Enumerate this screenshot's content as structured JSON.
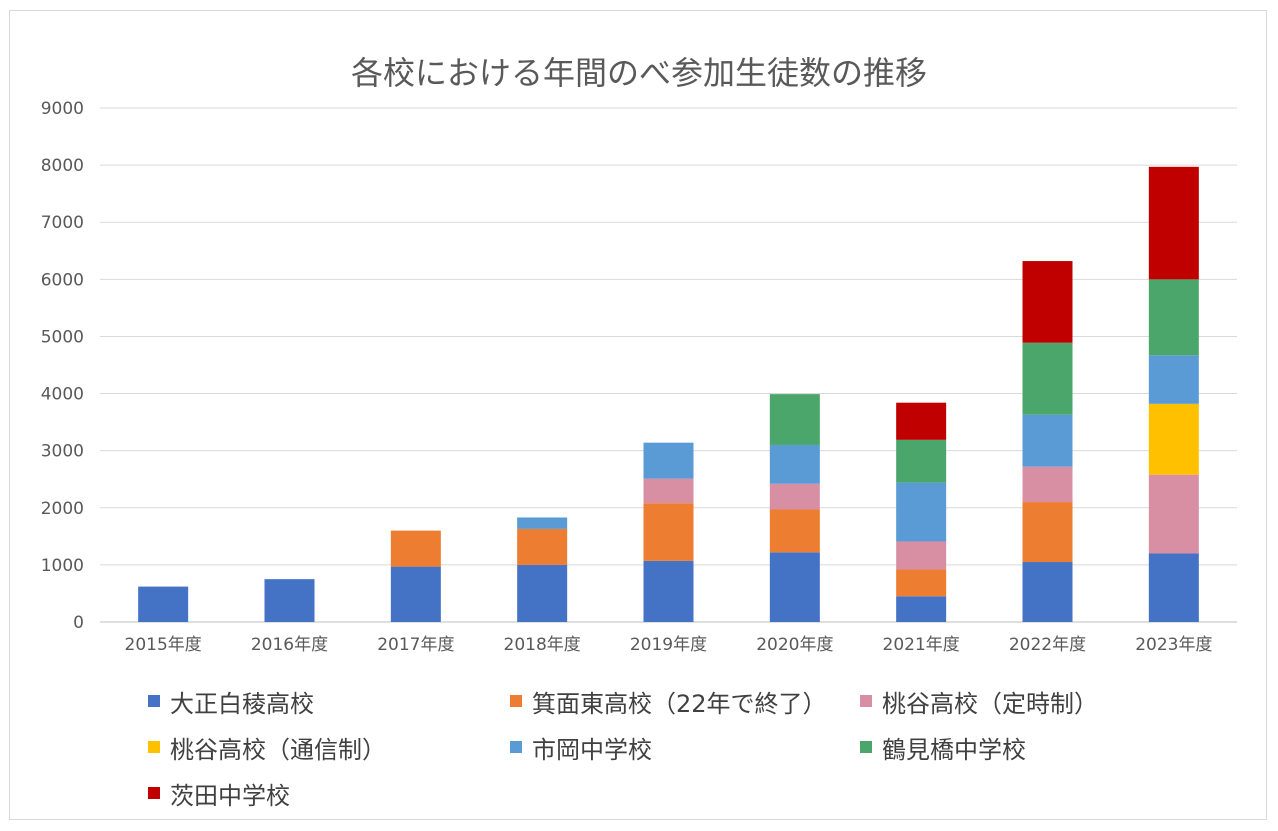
{
  "chart_data": {
    "type": "bar",
    "stacked": true,
    "title": "各校における年間のべ参加生徒数の推移",
    "xlabel": "",
    "ylabel": "",
    "ylim": [
      0,
      9000
    ],
    "yticks": [
      "0",
      "1000",
      "2000",
      "3000",
      "4000",
      "5000",
      "6000",
      "7000",
      "8000",
      "9000"
    ],
    "grid": true,
    "legend_position": "bottom",
    "categories": [
      "2015年度",
      "2016年度",
      "2017年度",
      "2018年度",
      "2019年度",
      "2020年度",
      "2021年度",
      "2022年度",
      "2023年度"
    ],
    "series": [
      {
        "name": "大正白稜高校",
        "color": "#4472c4",
        "values": [
          620,
          750,
          970,
          1000,
          1070,
          1220,
          450,
          1050,
          1200
        ]
      },
      {
        "name": "箕面東高校（22年で終了）",
        "color": "#ed7d31",
        "values": [
          0,
          0,
          630,
          630,
          1010,
          750,
          470,
          1050,
          0
        ]
      },
      {
        "name": "桃谷高校（定時制）",
        "color": "#d98fa3",
        "values": [
          0,
          0,
          0,
          0,
          430,
          450,
          490,
          620,
          1380
        ]
      },
      {
        "name": "桃谷高校（通信制）",
        "color": "#ffc000",
        "values": [
          0,
          0,
          0,
          0,
          0,
          0,
          0,
          0,
          1240
        ]
      },
      {
        "name": "市岡中学校",
        "color": "#5b9bd5",
        "values": [
          0,
          0,
          0,
          200,
          630,
          680,
          1030,
          910,
          850
        ]
      },
      {
        "name": "鶴見橋中学校",
        "color": "#4aa66a",
        "values": [
          0,
          0,
          0,
          0,
          0,
          890,
          750,
          1260,
          1330
        ]
      },
      {
        "name": "茨田中学校",
        "color": "#c00000",
        "values": [
          0,
          0,
          0,
          0,
          0,
          0,
          650,
          1430,
          1970
        ]
      }
    ]
  }
}
